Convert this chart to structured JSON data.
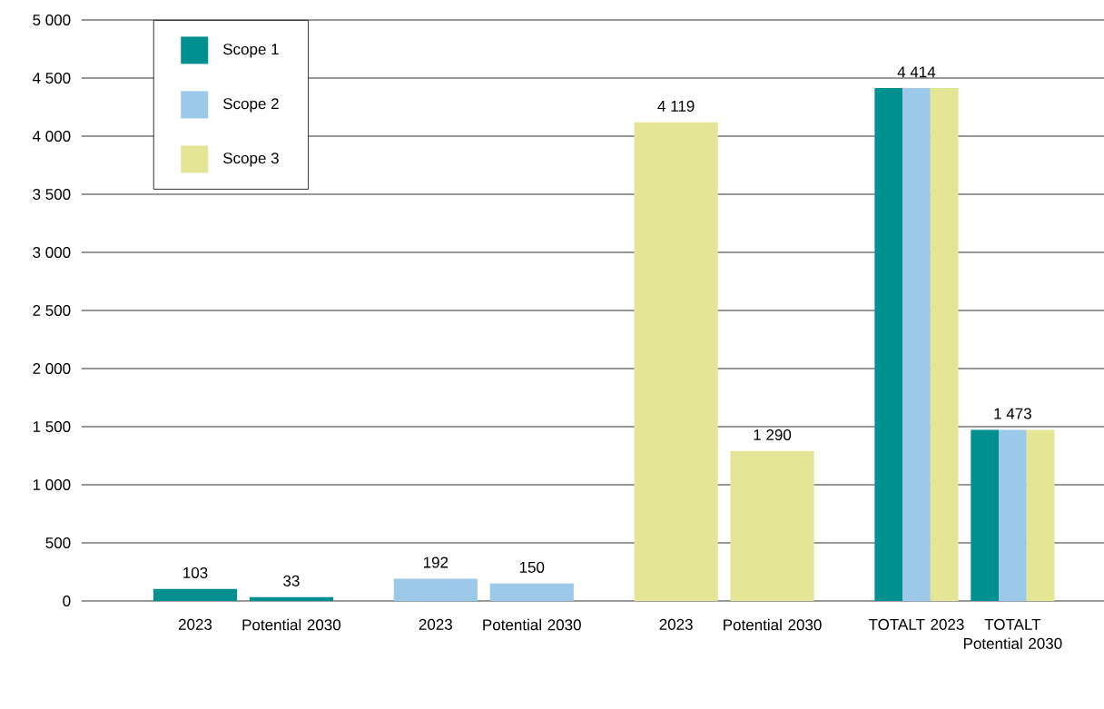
{
  "chart_data": {
    "type": "bar",
    "categories": [
      "2023",
      "Potential 2030",
      "2023",
      "Potential 2030",
      "2023",
      "Potential 2030",
      "TOTALT 2023",
      "TOTALT Potential 2030"
    ],
    "series": [
      {
        "name": "Scope 1",
        "color": "#009090",
        "values": [
          103,
          33,
          null,
          null,
          null,
          null,
          4414,
          1473
        ],
        "value_labels": [
          "103",
          "33",
          null,
          null,
          null,
          null,
          null,
          null
        ]
      },
      {
        "name": "Scope 2",
        "color": "#9cc9ea",
        "values": [
          null,
          null,
          192,
          150,
          null,
          null,
          4414,
          1473
        ],
        "value_labels": [
          null,
          null,
          "192",
          "150",
          null,
          null,
          "4 414",
          "1 473"
        ]
      },
      {
        "name": "Scope 3",
        "color": "#e5e596",
        "values": [
          null,
          null,
          null,
          null,
          4119,
          1290,
          4414,
          1473
        ],
        "value_labels": [
          null,
          null,
          null,
          null,
          "4 119",
          "1 290",
          null,
          null
        ]
      }
    ],
    "ylim": [
      0,
      5000
    ],
    "yticks": [
      {
        "value": 0,
        "label": "0"
      },
      {
        "value": 500,
        "label": "500"
      },
      {
        "value": 1000,
        "label": "1 000"
      },
      {
        "value": 1500,
        "label": "1 500"
      },
      {
        "value": 2000,
        "label": "2 000"
      },
      {
        "value": 2500,
        "label": "2 500"
      },
      {
        "value": 3000,
        "label": "3 000"
      },
      {
        "value": 3500,
        "label": "3 500"
      },
      {
        "value": 4000,
        "label": "4 000"
      },
      {
        "value": 4500,
        "label": "4 500"
      },
      {
        "value": 5000,
        "label": "5 000"
      }
    ],
    "grid": "y",
    "legend": "top left"
  }
}
